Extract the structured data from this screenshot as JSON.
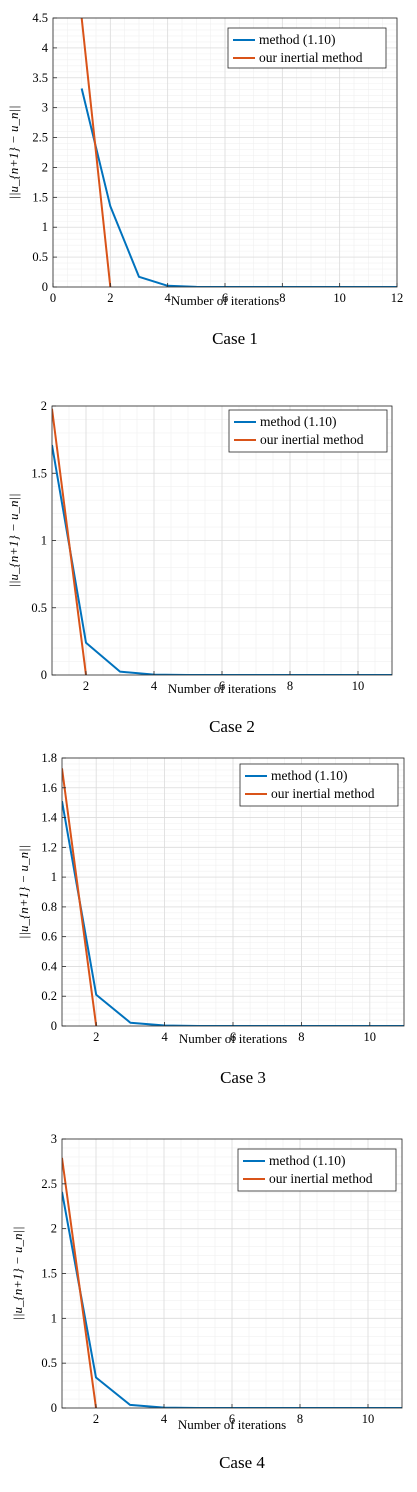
{
  "chart_data": [
    {
      "type": "line",
      "caption": "Case 1",
      "xlabel": "Number of iterations",
      "ylabel": "||u_{n+1} − u_n||",
      "xlim": [
        0,
        12
      ],
      "ylim": [
        0,
        4.5
      ],
      "xticks": [
        0,
        2,
        4,
        6,
        8,
        10,
        12
      ],
      "yticks": [
        0,
        0.5,
        1,
        1.5,
        2,
        2.5,
        3,
        3.5,
        4,
        4.5
      ],
      "grid": true,
      "legend_position": "top-right",
      "series": [
        {
          "name": "method (1.10)",
          "color": "#0072BD",
          "x": [
            1,
            2,
            3,
            4,
            5,
            6,
            7,
            8,
            9,
            10,
            11,
            12
          ],
          "y": [
            3.32,
            1.35,
            0.17,
            0.02,
            0.002,
            0,
            0,
            0,
            0,
            0,
            0,
            0
          ]
        },
        {
          "name": "our inertial method",
          "color": "#D95319",
          "x": [
            1,
            2
          ],
          "y": [
            4.5,
            0
          ]
        }
      ]
    },
    {
      "type": "line",
      "caption": "Case 2",
      "xlabel": "Number of iterations",
      "ylabel": "||u_{n+1} − u_n||",
      "xlim": [
        1,
        11
      ],
      "ylim": [
        0,
        2
      ],
      "xticks": [
        2,
        4,
        6,
        8,
        10
      ],
      "yticks": [
        0,
        0.5,
        1,
        1.5,
        2
      ],
      "grid": true,
      "legend_position": "top-right",
      "series": [
        {
          "name": "method (1.10)",
          "color": "#0072BD",
          "x": [
            1,
            2,
            3,
            4,
            5,
            6,
            7,
            8,
            9,
            10,
            11
          ],
          "y": [
            1.71,
            0.24,
            0.025,
            0.003,
            0,
            0,
            0,
            0,
            0,
            0,
            0
          ]
        },
        {
          "name": "our inertial method",
          "color": "#D95319",
          "x": [
            1,
            2
          ],
          "y": [
            1.98,
            0
          ]
        }
      ]
    },
    {
      "type": "line",
      "caption": "Case 3",
      "xlabel": "Number of iterations",
      "ylabel": "||u_{n+1} − u_n||",
      "xlim": [
        1,
        11
      ],
      "ylim": [
        0,
        1.8
      ],
      "xticks": [
        2,
        4,
        6,
        8,
        10
      ],
      "yticks": [
        0,
        0.2,
        0.4,
        0.6,
        0.8,
        1,
        1.2,
        1.4,
        1.6,
        1.8
      ],
      "grid": true,
      "legend_position": "top-right",
      "series": [
        {
          "name": "method (1.10)",
          "color": "#0072BD",
          "x": [
            1,
            2,
            3,
            4,
            5,
            6,
            7,
            8,
            9,
            10,
            11
          ],
          "y": [
            1.51,
            0.21,
            0.022,
            0.003,
            0,
            0,
            0,
            0,
            0,
            0,
            0
          ]
        },
        {
          "name": "our inertial method",
          "color": "#D95319",
          "x": [
            1,
            2
          ],
          "y": [
            1.73,
            0
          ]
        }
      ]
    },
    {
      "type": "line",
      "caption": "Case 4",
      "xlabel": "Number of iterations",
      "ylabel": "||u_{n+1} − u_n||",
      "xlim": [
        1,
        11
      ],
      "ylim": [
        0,
        3
      ],
      "xticks": [
        2,
        4,
        6,
        8,
        10
      ],
      "yticks": [
        0,
        0.5,
        1,
        1.5,
        2,
        2.5,
        3
      ],
      "grid": true,
      "legend_position": "top-right",
      "series": [
        {
          "name": "method (1.10)",
          "color": "#0072BD",
          "x": [
            1,
            2,
            3,
            4,
            5,
            6,
            7,
            8,
            9,
            10,
            11
          ],
          "y": [
            2.41,
            0.34,
            0.035,
            0.004,
            0,
            0,
            0,
            0,
            0,
            0,
            0
          ]
        },
        {
          "name": "our inertial method",
          "color": "#D95319",
          "x": [
            1,
            2
          ],
          "y": [
            2.79,
            0
          ]
        }
      ]
    }
  ]
}
